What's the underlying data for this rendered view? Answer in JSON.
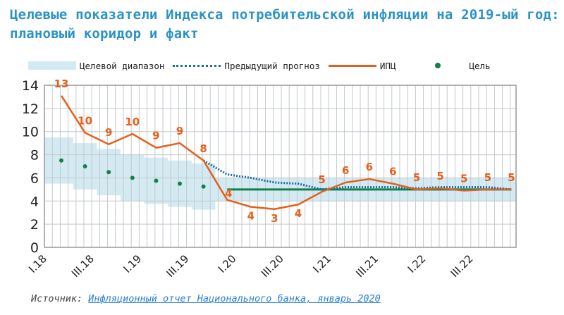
{
  "title": "Целевые показатели Индекса потребительской инфляции на 2019-ый год: плановый коридор и факт",
  "legend": {
    "band": "Целевой диапазон",
    "prev": "Предыдущий прогноз",
    "cpi": "ИПЦ",
    "target": "Цель"
  },
  "source": {
    "label": "Источник:",
    "link": "Инфляционный отчет Национального банка, январь 2020"
  },
  "colors": {
    "title": "#2b93c4",
    "band": "#d4eaf2",
    "prev": "#1c6aa8",
    "cpi": "#e4601c",
    "target": "#138048",
    "grid": "#c3c8cc"
  },
  "chart_data": {
    "type": "line",
    "ylim": [
      0,
      14
    ],
    "yticks": [
      0,
      2,
      4,
      6,
      8,
      10,
      12,
      14
    ],
    "xtick_labels": [
      "I.18",
      "III.18",
      "I.19",
      "III.19",
      "I.20",
      "III.20",
      "I.21",
      "III.21",
      "I.22",
      "III.22"
    ],
    "quarters": [
      "I.18",
      "II.18",
      "III.18",
      "IV.18",
      "I.19",
      "II.19",
      "III.19",
      "IV.19",
      "I.20",
      "II.20",
      "III.20",
      "IV.20",
      "I.21",
      "II.21",
      "III.21",
      "IV.21",
      "I.22",
      "II.22",
      "III.22",
      "IV.22"
    ],
    "series": [
      {
        "name": "ИПЦ",
        "values": [
          13.1,
          9.9,
          8.9,
          9.8,
          8.6,
          9.0,
          7.5,
          4.1,
          3.5,
          3.3,
          3.7,
          4.8,
          5.6,
          5.9,
          5.5,
          5.0,
          5.1,
          4.9,
          5.0,
          5.0
        ],
        "data_labels": [
          "13",
          "10",
          "9",
          "10",
          "9",
          "9",
          "8",
          "4",
          "4",
          "3",
          "4",
          "5",
          "6",
          "6",
          "6",
          "5",
          "5",
          "5",
          "5",
          "5"
        ]
      },
      {
        "name": "Предыдущий прогноз",
        "values": [
          null,
          null,
          null,
          null,
          null,
          null,
          7.5,
          6.3,
          6.0,
          5.6,
          5.5,
          5.0,
          5.2,
          5.2,
          5.2,
          5.1,
          5.2,
          5.2,
          5.2,
          5.0
        ]
      },
      {
        "name": "Цель",
        "values": [
          7.5,
          7.0,
          6.5,
          6.0,
          5.75,
          5.5,
          5.25,
          5,
          5,
          5,
          5,
          5,
          5,
          5,
          5,
          5,
          5,
          5,
          5,
          5
        ]
      },
      {
        "name": "Целевой диапазон",
        "lower": [
          5.5,
          5.0,
          4.5,
          4.0,
          3.75,
          3.5,
          3.25,
          4,
          4,
          4,
          4,
          4,
          4,
          4,
          4,
          4,
          4,
          4,
          4,
          4
        ],
        "upper": [
          9.5,
          9.0,
          8.5,
          8.0,
          7.75,
          7.5,
          7.25,
          6,
          6,
          6,
          6,
          6,
          6,
          6,
          6,
          6,
          6,
          6,
          6,
          6
        ]
      }
    ]
  }
}
